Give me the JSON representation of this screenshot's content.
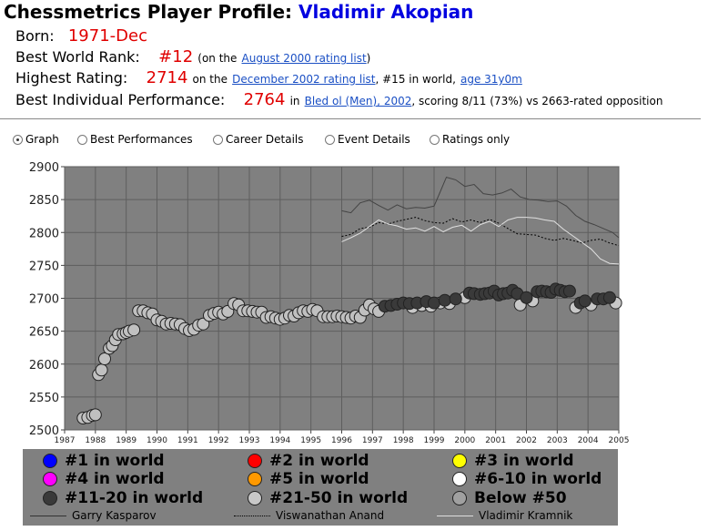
{
  "header": {
    "title_prefix": "Chessmetrics Player Profile:",
    "player_name": "Vladimir Akopian"
  },
  "info": {
    "born_label": "Born:",
    "born_value": "1971-Dec",
    "rank_label": "Best World Rank:",
    "rank_value": "#12",
    "rank_pre": "(on the",
    "rank_link": "August 2000 rating list",
    "rank_post": ")",
    "high_label": "Highest Rating:",
    "high_value": "2714",
    "high_pre": "on the",
    "high_link": "December 2002 rating list",
    "high_mid": ", #15 in world,",
    "high_age": "age 31y0m",
    "perf_label": "Best Individual Performance:",
    "perf_value": "2764",
    "perf_pre": "in",
    "perf_link": "Bled ol (Men), 2002",
    "perf_post": ", scoring 8/11 (73%) vs 2663-rated opposition"
  },
  "tabs": [
    {
      "label": "Graph",
      "selected": true
    },
    {
      "label": "Best Performances",
      "selected": false
    },
    {
      "label": "Career Details",
      "selected": false
    },
    {
      "label": "Event Details",
      "selected": false
    },
    {
      "label": "Ratings only",
      "selected": false
    }
  ],
  "legend": {
    "markers": [
      {
        "label": "#1 in world",
        "color": "#0000ff"
      },
      {
        "label": "#2 in world",
        "color": "#ff0000"
      },
      {
        "label": "#3 in world",
        "color": "#ffff00"
      },
      {
        "label": "#4 in world",
        "color": "#ff00ff"
      },
      {
        "label": "#5 in world",
        "color": "#ff9900"
      },
      {
        "label": "#6-10 in world",
        "color": "#ffffff"
      },
      {
        "label": "#11-20 in world",
        "color": "#3a3a3a"
      },
      {
        "label": "#21-50 in world",
        "color": "#c8c8c8"
      },
      {
        "label": "Below #50",
        "color": "#a0a0a0"
      }
    ],
    "lines": [
      {
        "label": "Garry Kasparov",
        "style": "solid",
        "color": "#333333"
      },
      {
        "label": "Viswanathan Anand",
        "style": "dotted",
        "color": "#000000"
      },
      {
        "label": "Vladimir Kramnik",
        "style": "solid",
        "color": "#dddddd"
      }
    ]
  },
  "chart_data": {
    "type": "scatter",
    "title": "",
    "xlabel": "",
    "ylabel": "",
    "xlim": [
      1987,
      2005
    ],
    "ylim": [
      2500,
      2900
    ],
    "x_ticks": [
      "1987",
      "1988",
      "1989",
      "1990",
      "1991",
      "1992",
      "1993",
      "1994",
      "1995",
      "1996",
      "1997",
      "1998",
      "1999",
      "2000",
      "2001",
      "2002",
      "2003",
      "2004",
      "2005"
    ],
    "y_ticks": [
      "2500",
      "2550",
      "2600",
      "2650",
      "2700",
      "2750",
      "2800",
      "2850",
      "2900"
    ],
    "grid": true,
    "background": "#808080",
    "series": [
      {
        "rank_group": "Below #50",
        "color": "#c0c0c0",
        "points": [
          [
            1987.6,
            2518
          ],
          [
            1987.75,
            2519
          ],
          [
            1987.9,
            2522
          ],
          [
            1988.0,
            2523
          ],
          [
            1988.1,
            2584
          ],
          [
            1988.2,
            2591
          ],
          [
            1988.3,
            2608
          ],
          [
            1988.45,
            2624
          ],
          [
            1988.55,
            2628
          ],
          [
            1988.65,
            2637
          ],
          [
            1988.75,
            2645
          ],
          [
            1988.9,
            2646
          ],
          [
            1989.0,
            2648
          ],
          [
            1989.1,
            2650
          ],
          [
            1989.25,
            2652
          ],
          [
            1989.4,
            2681
          ],
          [
            1989.55,
            2681
          ],
          [
            1989.7,
            2678
          ],
          [
            1989.85,
            2676
          ],
          [
            1990.0,
            2667
          ],
          [
            1990.15,
            2665
          ],
          [
            1990.3,
            2661
          ],
          [
            1990.45,
            2662
          ],
          [
            1990.6,
            2661
          ],
          [
            1990.75,
            2660
          ],
          [
            1990.9,
            2654
          ],
          [
            1991.05,
            2651
          ],
          [
            1991.2,
            2653
          ],
          [
            1991.35,
            2659
          ],
          [
            1991.5,
            2661
          ],
          [
            1991.7,
            2674
          ],
          [
            1991.85,
            2677
          ],
          [
            1992.0,
            2679
          ],
          [
            1992.15,
            2676
          ],
          [
            1992.3,
            2680
          ],
          [
            1992.5,
            2692
          ],
          [
            1992.65,
            2690
          ],
          [
            1992.8,
            2681
          ],
          [
            1992.95,
            2681
          ],
          [
            1993.1,
            2680
          ],
          [
            1993.25,
            2679
          ],
          [
            1993.4,
            2679
          ],
          [
            1993.55,
            2671
          ],
          [
            1993.7,
            2672
          ],
          [
            1993.85,
            2670
          ],
          [
            1994.0,
            2668
          ],
          [
            1994.15,
            2670
          ],
          [
            1994.3,
            2674
          ],
          [
            1994.45,
            2673
          ],
          [
            1994.6,
            2678
          ],
          [
            1994.75,
            2681
          ],
          [
            1994.9,
            2680
          ],
          [
            1995.05,
            2683
          ],
          [
            1995.2,
            2681
          ],
          [
            1995.4,
            2672
          ],
          [
            1995.55,
            2672
          ],
          [
            1995.7,
            2672
          ],
          [
            1995.85,
            2673
          ],
          [
            1996.0,
            2672
          ],
          [
            1996.15,
            2671
          ],
          [
            1996.3,
            2670
          ],
          [
            1996.45,
            2673
          ],
          [
            1996.6,
            2671
          ],
          [
            1996.75,
            2682
          ],
          [
            1996.9,
            2690
          ],
          [
            1997.05,
            2684
          ],
          [
            1997.2,
            2680
          ]
        ]
      },
      {
        "rank_group": "#21-50 in world",
        "color": "#c8c8c8",
        "points": [
          [
            1998.3,
            2686
          ],
          [
            1998.6,
            2689
          ],
          [
            1998.9,
            2688
          ],
          [
            1999.2,
            2693
          ],
          [
            1999.5,
            2692
          ],
          [
            2000.0,
            2701
          ],
          [
            2001.8,
            2690
          ],
          [
            2002.2,
            2696
          ],
          [
            2003.6,
            2686
          ],
          [
            2004.1,
            2690
          ],
          [
            2004.9,
            2693
          ]
        ]
      },
      {
        "rank_group": "#11-20 in world",
        "color": "#3a3a3a",
        "points": [
          [
            1997.4,
            2688
          ],
          [
            1997.6,
            2689
          ],
          [
            1997.8,
            2691
          ],
          [
            1998.0,
            2693
          ],
          [
            1998.2,
            2692
          ],
          [
            1998.45,
            2693
          ],
          [
            1998.75,
            2695
          ],
          [
            1999.0,
            2693
          ],
          [
            1999.35,
            2697
          ],
          [
            1999.7,
            2699
          ],
          [
            2000.15,
            2708
          ],
          [
            2000.3,
            2707
          ],
          [
            2000.5,
            2706
          ],
          [
            2000.65,
            2707
          ],
          [
            2000.8,
            2708
          ],
          [
            2000.95,
            2711
          ],
          [
            2001.1,
            2705
          ],
          [
            2001.25,
            2707
          ],
          [
            2001.4,
            2708
          ],
          [
            2001.55,
            2712
          ],
          [
            2001.7,
            2707
          ],
          [
            2002.0,
            2701
          ],
          [
            2002.35,
            2710
          ],
          [
            2002.5,
            2711
          ],
          [
            2002.65,
            2710
          ],
          [
            2002.8,
            2709
          ],
          [
            2002.95,
            2714
          ],
          [
            2003.1,
            2712
          ],
          [
            2003.25,
            2710
          ],
          [
            2003.4,
            2711
          ],
          [
            2003.75,
            2693
          ],
          [
            2003.9,
            2696
          ],
          [
            2004.3,
            2699
          ],
          [
            2004.5,
            2699
          ],
          [
            2004.7,
            2701
          ]
        ]
      }
    ],
    "comparison_lines": [
      {
        "name": "Garry Kasparov",
        "style": "solid",
        "color": "#444444",
        "x": [
          1996.0,
          1996.3,
          1996.6,
          1996.9,
          1997.2,
          1997.5,
          1997.8,
          1998.1,
          1998.4,
          1998.7,
          1999.0,
          1999.2,
          1999.4,
          1999.7,
          2000.0,
          2000.3,
          2000.6,
          2000.9,
          2001.2,
          2001.5,
          2001.8,
          2002.1,
          2002.4,
          2002.7,
          2003.0,
          2003.3,
          2003.6,
          2003.9,
          2004.2,
          2004.5,
          2004.8,
          2005.0
        ],
        "y": [
          2833,
          2830,
          2845,
          2849,
          2841,
          2834,
          2842,
          2836,
          2838,
          2837,
          2840,
          2862,
          2884,
          2880,
          2870,
          2873,
          2859,
          2857,
          2860,
          2866,
          2854,
          2850,
          2849,
          2847,
          2848,
          2840,
          2826,
          2817,
          2812,
          2806,
          2800,
          2792
        ]
      },
      {
        "name": "Viswanathan Anand",
        "style": "dotted",
        "color": "#000000",
        "x": [
          1996.0,
          1996.3,
          1996.6,
          1996.9,
          1997.2,
          1997.5,
          1997.8,
          1998.1,
          1998.4,
          1998.7,
          1999.0,
          1999.3,
          1999.6,
          1999.9,
          2000.2,
          2000.5,
          2000.8,
          2001.1,
          2001.4,
          2001.7,
          2002.0,
          2002.3,
          2002.6,
          2002.9,
          2003.2,
          2003.5,
          2003.8,
          2004.1,
          2004.4,
          2004.7,
          2005.0
        ],
        "y": [
          2794,
          2797,
          2806,
          2808,
          2815,
          2813,
          2817,
          2820,
          2823,
          2818,
          2815,
          2814,
          2821,
          2816,
          2819,
          2815,
          2820,
          2814,
          2806,
          2798,
          2797,
          2796,
          2791,
          2788,
          2791,
          2788,
          2784,
          2788,
          2790,
          2784,
          2780
        ]
      },
      {
        "name": "Vladimir Kramnik",
        "style": "solid",
        "color": "#e0e0e0",
        "x": [
          1996.0,
          1996.3,
          1996.6,
          1996.9,
          1997.2,
          1997.5,
          1997.8,
          1998.1,
          1998.4,
          1998.7,
          1999.0,
          1999.3,
          1999.6,
          1999.9,
          2000.2,
          2000.5,
          2000.8,
          2001.1,
          2001.4,
          2001.7,
          2002.0,
          2002.3,
          2002.6,
          2002.9,
          2003.2,
          2003.5,
          2003.8,
          2004.1,
          2004.4,
          2004.7,
          2005.0
        ],
        "y": [
          2786,
          2792,
          2799,
          2809,
          2819,
          2813,
          2810,
          2805,
          2807,
          2802,
          2809,
          2801,
          2808,
          2811,
          2802,
          2812,
          2817,
          2809,
          2819,
          2823,
          2823,
          2822,
          2819,
          2817,
          2805,
          2795,
          2785,
          2775,
          2760,
          2753,
          2752
        ]
      }
    ]
  }
}
